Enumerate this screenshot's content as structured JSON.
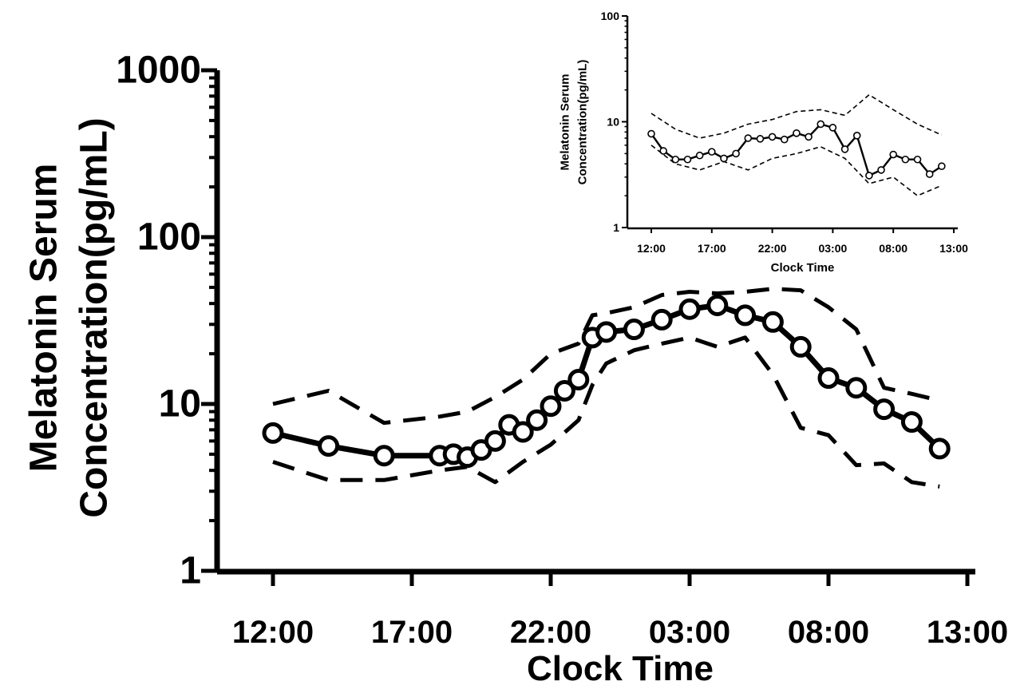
{
  "chart_data": [
    {
      "id": "main",
      "type": "line",
      "xlabel": "Clock Time",
      "ylabel_lines": [
        "Melatonin Serum",
        "Concentration(pg/mL)"
      ],
      "yscale": "log",
      "ylim": [
        1,
        1000
      ],
      "ytick_values": [
        1,
        10,
        100,
        1000
      ],
      "ytick_labels": [
        "1",
        "10",
        "100",
        "1000"
      ],
      "xlim": [
        0,
        25
      ],
      "xtick_values": [
        0,
        5,
        10,
        15,
        20,
        25
      ],
      "xtick_labels": [
        "12:00",
        "17:00",
        "22:00",
        "03:00",
        "08:00",
        "13:00"
      ],
      "grid": false,
      "series": [
        {
          "style": "solid-circles",
          "x": [
            0,
            2,
            4,
            6,
            6.5,
            7,
            7.5,
            8,
            8.5,
            9,
            9.5,
            10,
            10.5,
            11,
            11.5,
            12,
            13,
            14,
            15,
            16,
            17,
            18,
            19,
            20,
            21,
            22,
            23,
            24
          ],
          "y": [
            6.7,
            5.6,
            4.9,
            4.9,
            5.0,
            4.8,
            5.3,
            6.0,
            7.5,
            6.8,
            8.0,
            9.7,
            12.0,
            14.0,
            25.0,
            27.0,
            28.0,
            32.0,
            37.0,
            39.0,
            34.0,
            31.0,
            22.0,
            14.3,
            12.5,
            9.3,
            7.8,
            5.4
          ]
        },
        {
          "style": "dashed-upper",
          "x": [
            0,
            2,
            4,
            6,
            7,
            8,
            9,
            10,
            11,
            11.5,
            12,
            13,
            14,
            15,
            16,
            17,
            18,
            19,
            20,
            21,
            22,
            23,
            24
          ],
          "y": [
            10.0,
            12.0,
            7.7,
            8.4,
            9.0,
            11.0,
            14.0,
            20.0,
            23.0,
            34.0,
            35.0,
            38.0,
            45.0,
            47.0,
            46.0,
            47.0,
            49.0,
            48.0,
            38.0,
            28.0,
            12.5,
            11.5,
            10.5
          ]
        },
        {
          "style": "dashed-lower",
          "x": [
            0,
            2,
            4,
            6,
            7,
            8,
            9,
            10,
            11,
            11.5,
            12,
            13,
            14,
            15,
            16,
            17,
            18,
            19,
            20,
            21,
            22,
            23,
            24
          ],
          "y": [
            4.5,
            3.5,
            3.5,
            4.0,
            4.2,
            3.4,
            4.5,
            5.7,
            8.0,
            13.0,
            17.5,
            21.0,
            23.0,
            25.0,
            22.0,
            25.0,
            15.0,
            7.2,
            6.5,
            4.3,
            4.4,
            3.4,
            3.2
          ]
        }
      ]
    },
    {
      "id": "inset",
      "type": "line",
      "xlabel": "Clock Time",
      "ylabel_lines": [
        "Melatonin Serum",
        "Concentration(pg/mL)"
      ],
      "yscale": "log",
      "ylim": [
        1,
        100
      ],
      "ytick_values": [
        1,
        10,
        100
      ],
      "ytick_labels": [
        "1",
        "10",
        "100"
      ],
      "xlim": [
        0,
        25
      ],
      "xtick_values": [
        0,
        5,
        10,
        15,
        20,
        25
      ],
      "xtick_labels": [
        "12:00",
        "17:00",
        "22:00",
        "03:00",
        "08:00",
        "13:00"
      ],
      "grid": false,
      "series": [
        {
          "style": "solid-circles",
          "x": [
            0,
            1,
            2,
            3,
            4,
            5,
            6,
            7,
            8,
            9,
            10,
            11,
            12,
            13,
            14,
            15,
            16,
            17,
            18,
            19,
            20,
            21,
            22,
            23,
            24
          ],
          "y": [
            7.7,
            5.3,
            4.4,
            4.4,
            4.8,
            5.2,
            4.5,
            5.0,
            7.0,
            6.9,
            7.2,
            6.8,
            7.8,
            7.2,
            9.5,
            8.8,
            5.5,
            7.4,
            3.1,
            3.5,
            4.9,
            4.4,
            4.4,
            3.2,
            3.8
          ]
        },
        {
          "style": "dashed-upper",
          "x": [
            0,
            2,
            4,
            6,
            8,
            10,
            12,
            14,
            16,
            18,
            20,
            22,
            24
          ],
          "y": [
            12.0,
            8.5,
            7.0,
            7.8,
            9.5,
            10.5,
            12.5,
            13.0,
            11.5,
            18.0,
            13.0,
            9.5,
            7.5
          ]
        },
        {
          "style": "dashed-lower",
          "x": [
            0,
            2,
            4,
            6,
            8,
            10,
            12,
            14,
            16,
            18,
            20,
            22,
            24
          ],
          "y": [
            6.0,
            4.0,
            3.5,
            4.2,
            3.5,
            4.5,
            5.0,
            5.8,
            4.5,
            2.6,
            3.0,
            2.0,
            2.5
          ]
        }
      ]
    }
  ]
}
